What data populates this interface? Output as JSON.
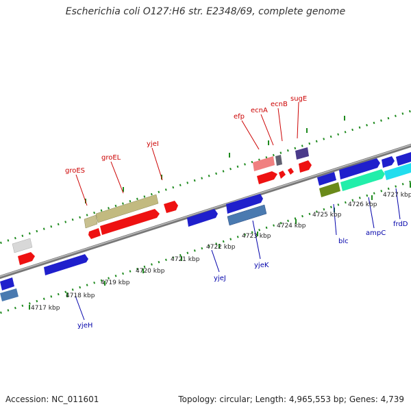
{
  "title": "Escherichia coli O127:H6 str. E2348/69, complete genome",
  "footer": {
    "accession": "Accession: NC_011601",
    "summary": "Topology: circular; Length: 4,965,553 bp; Genes: 4,739"
  },
  "colors": {
    "backbone": "#888888",
    "tick": "#1e8a1e",
    "gene_label_top": "#cc0000",
    "gene_label_bottom": "#0000aa",
    "kbp_label": "#222222"
  },
  "kbp_labels": [
    "4717 kbp",
    "4718 kbp",
    "4719 kbp",
    "4720 kbp",
    "4721 kbp",
    "4722 kbp",
    "4723 kbp",
    "4724 kbp",
    "4725 kbp",
    "4726 kbp",
    "4727 kbp"
  ],
  "gene_labels_top": [
    "groES",
    "groEL",
    "yjeI",
    "efp",
    "ecnA",
    "ecnB",
    "sugE"
  ],
  "gene_labels_bottom": [
    "yjeH",
    "yjeJ",
    "yjeK",
    "blc",
    "ampC",
    "frdD"
  ]
}
